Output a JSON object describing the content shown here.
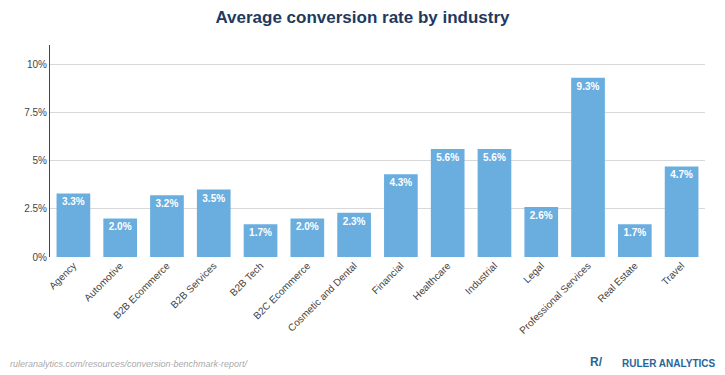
{
  "chart_data": {
    "type": "bar",
    "title": "Average conversion rate by industry",
    "categories": [
      "Agency",
      "Automotive",
      "B2B Ecommerce",
      "B2B Services",
      "B2B Tech",
      "B2C Ecommerce",
      "Cosmetic and Dental",
      "Financial",
      "Healthcare",
      "Industrial",
      "Legal",
      "Professional Services",
      "Real Estate",
      "Travel"
    ],
    "values": [
      3.3,
      2.0,
      3.2,
      3.5,
      1.7,
      2.0,
      2.3,
      4.3,
      5.6,
      5.6,
      2.6,
      9.3,
      1.7,
      4.7
    ],
    "value_labels": [
      "3.3%",
      "2.0%",
      "3.2%",
      "3.5%",
      "1.7%",
      "2.0%",
      "2.3%",
      "4.3%",
      "5.6%",
      "5.6%",
      "2.6%",
      "9.3%",
      "1.7%",
      "4.7%"
    ],
    "data_labels": true,
    "color": "#6aaee0",
    "ylim": [
      0,
      11.0
    ],
    "yticks": [
      {
        "value": 0,
        "label": "0%"
      },
      {
        "value": 2.5,
        "label": "2.5%"
      },
      {
        "value": 5,
        "label": "5%"
      },
      {
        "value": 7.5,
        "label": "7.5%"
      },
      {
        "value": 10,
        "label": "10%"
      }
    ],
    "grid": true,
    "annotations": [
      "ruleranalytics.com/resources/conversion-benchmark-report/",
      "R/",
      "RULER ANALYTICS"
    ]
  }
}
